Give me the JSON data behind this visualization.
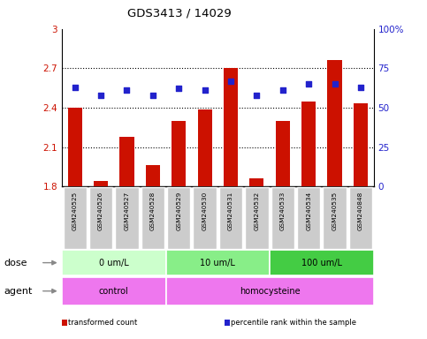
{
  "title": "GDS3413 / 14029",
  "samples": [
    "GSM240525",
    "GSM240526",
    "GSM240527",
    "GSM240528",
    "GSM240529",
    "GSM240530",
    "GSM240531",
    "GSM240532",
    "GSM240533",
    "GSM240534",
    "GSM240535",
    "GSM240848"
  ],
  "transformed_count": [
    2.4,
    1.84,
    2.18,
    1.96,
    2.3,
    2.385,
    2.705,
    1.86,
    2.3,
    2.445,
    2.76,
    2.43
  ],
  "percentile_rank": [
    63,
    58,
    61,
    58,
    62,
    61,
    67,
    58,
    61,
    65,
    65,
    63
  ],
  "ylim_left": [
    1.8,
    3.0
  ],
  "ylim_right": [
    0,
    100
  ],
  "yticks_left": [
    1.8,
    2.1,
    2.4,
    2.7,
    3.0
  ],
  "yticks_right": [
    0,
    25,
    50,
    75,
    100
  ],
  "ytick_labels_left": [
    "1.8",
    "2.1",
    "2.4",
    "2.7",
    "3"
  ],
  "ytick_labels_right": [
    "0",
    "25",
    "50",
    "75",
    "100%"
  ],
  "hlines": [
    2.1,
    2.4,
    2.7
  ],
  "bar_color": "#cc1100",
  "dot_color": "#2222cc",
  "dose_groups": [
    {
      "label": "0 um/L",
      "start": 0,
      "end": 4,
      "color": "#ccffcc"
    },
    {
      "label": "10 um/L",
      "start": 4,
      "end": 8,
      "color": "#88ee88"
    },
    {
      "label": "100 um/L",
      "start": 8,
      "end": 12,
      "color": "#44cc44"
    }
  ],
  "agent_groups": [
    {
      "label": "control",
      "start": 0,
      "end": 4,
      "color": "#ee77ee"
    },
    {
      "label": "homocysteine",
      "start": 4,
      "end": 12,
      "color": "#ee77ee"
    }
  ],
  "dose_label": "dose",
  "agent_label": "agent",
  "legend_items": [
    {
      "color": "#cc1100",
      "label": "transformed count"
    },
    {
      "color": "#2222cc",
      "label": "percentile rank within the sample"
    }
  ],
  "bar_width": 0.55,
  "tick_label_bg": "#cccccc",
  "arrow_color": "#888888"
}
